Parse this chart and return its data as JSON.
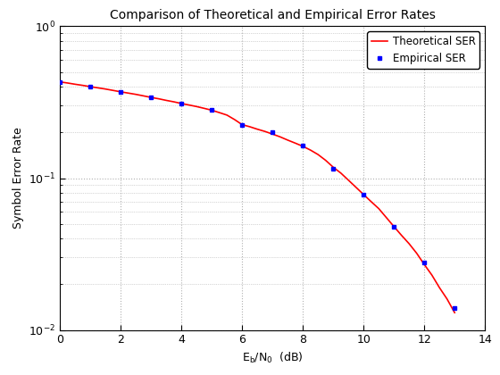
{
  "title": "Comparison of Theoretical and Empirical Error Rates",
  "xlabel": "E_b/N_0  (dB)",
  "ylabel": "Symbol Error Rate",
  "xlim": [
    0,
    14
  ],
  "ylim": [
    0.01,
    1.0
  ],
  "xticks": [
    0,
    2,
    4,
    6,
    8,
    10,
    12,
    14
  ],
  "theoretical_x": [
    0,
    0.25,
    0.5,
    0.75,
    1,
    1.25,
    1.5,
    1.75,
    2,
    2.25,
    2.5,
    2.75,
    3,
    3.25,
    3.5,
    3.75,
    4,
    4.25,
    4.5,
    4.75,
    5,
    5.25,
    5.5,
    5.75,
    6,
    6.25,
    6.5,
    6.75,
    7,
    7.25,
    7.5,
    7.75,
    8,
    8.25,
    8.5,
    8.75,
    9,
    9.25,
    9.5,
    9.75,
    10,
    10.25,
    10.5,
    10.75,
    11,
    11.25,
    11.5,
    11.75,
    12,
    12.25,
    12.5,
    12.75,
    13
  ],
  "theoretical_y": [
    0.43,
    0.423,
    0.415,
    0.408,
    0.4,
    0.393,
    0.386,
    0.378,
    0.37,
    0.363,
    0.356,
    0.348,
    0.34,
    0.333,
    0.325,
    0.318,
    0.31,
    0.303,
    0.296,
    0.288,
    0.28,
    0.27,
    0.26,
    0.243,
    0.225,
    0.218,
    0.21,
    0.203,
    0.195,
    0.187,
    0.178,
    0.17,
    0.162,
    0.153,
    0.143,
    0.131,
    0.118,
    0.108,
    0.097,
    0.087,
    0.078,
    0.07,
    0.063,
    0.055,
    0.048,
    0.042,
    0.037,
    0.032,
    0.027,
    0.023,
    0.019,
    0.016,
    0.013
  ],
  "empirical_x": [
    0,
    1,
    2,
    3,
    4,
    5,
    6,
    7,
    8,
    9,
    10,
    11,
    12,
    13
  ],
  "empirical_y": [
    0.43,
    0.4,
    0.37,
    0.34,
    0.31,
    0.28,
    0.225,
    0.2,
    0.163,
    0.115,
    0.078,
    0.048,
    0.028,
    0.014
  ],
  "line_color": "#ff0000",
  "dot_color": "#0000ff",
  "legend_labels": [
    "Theoretical SER",
    "Empirical SER"
  ],
  "grid_color": "#b0b0b0",
  "background_color": "#ffffff",
  "title_fontsize": 10,
  "label_fontsize": 9,
  "legend_fontsize": 8.5,
  "tick_fontsize": 9
}
